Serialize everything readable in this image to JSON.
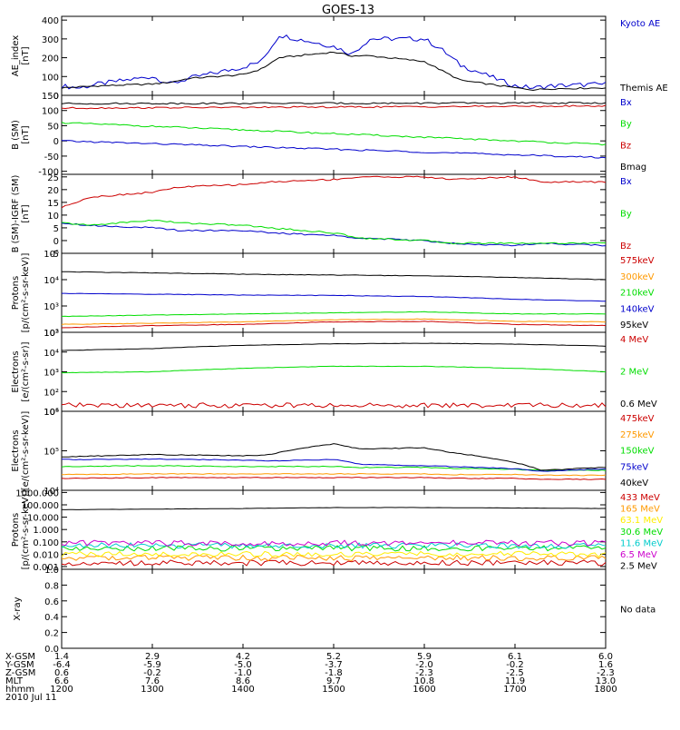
{
  "title": "GOES-13",
  "colors": {
    "black": "#000000",
    "blue": "#0000cc",
    "green": "#00dd00",
    "red": "#cc0000",
    "orange": "#ff9900",
    "yellow": "#ffee00",
    "cyan": "#00cccc",
    "purple": "#cc00cc",
    "brightblue": "#0066ff"
  },
  "footer": {
    "rows": [
      {
        "label": "X-GSM",
        "values": [
          "1.4",
          "2.9",
          "4.2",
          "5.2",
          "5.9",
          "6.1",
          "6.0"
        ]
      },
      {
        "label": "Y-GSM",
        "values": [
          "-6.4",
          "-5.9",
          "-5.0",
          "-3.7",
          "-2.0",
          "-0.2",
          "1.6"
        ]
      },
      {
        "label": "Z-GSM",
        "values": [
          "0.6",
          "-0.2",
          "-1.0",
          "-1.8",
          "-2.3",
          "-2.5",
          "-2.3"
        ]
      },
      {
        "label": "MLT",
        "values": [
          "6.6",
          "7.6",
          "8.6",
          "9.7",
          "10.8",
          "11.9",
          "13.0"
        ]
      },
      {
        "label": "hhmm",
        "values": [
          "1200",
          "1300",
          "1400",
          "1500",
          "1600",
          "1700",
          "1800"
        ]
      }
    ],
    "date": "2010 Jul 11"
  },
  "chart_data": [
    {
      "type": "line",
      "ylabel": "AE_index\n[nT]",
      "ylim": [
        0,
        420
      ],
      "ticks": [
        "0",
        "100",
        "200",
        "300",
        "400"
      ],
      "x": [
        1200,
        1220,
        1240,
        1300,
        1320,
        1340,
        1400,
        1420,
        1440,
        1500,
        1520,
        1540,
        1600,
        1620,
        1640,
        1700,
        1720,
        1740,
        1800
      ],
      "series": [
        {
          "name": "Kyoto AE",
          "color": "blue",
          "values": [
            50,
            40,
            60,
            100,
            60,
            90,
            150,
            180,
            320,
            260,
            220,
            300,
            300,
            240,
            160,
            50,
            40,
            50,
            60
          ]
        },
        {
          "name": "Themis AE",
          "color": "black",
          "values": [
            40,
            45,
            50,
            60,
            70,
            90,
            110,
            140,
            200,
            230,
            210,
            210,
            180,
            130,
            80,
            40,
            30,
            35,
            40
          ]
        }
      ]
    },
    {
      "type": "line",
      "ylabel": "B (SM)\n[nT]",
      "ylim": [
        -110,
        150
      ],
      "ticks": [
        "-100",
        "-50",
        "0",
        "50",
        "100",
        "150"
      ],
      "x": [
        1200,
        1800
      ],
      "series": [
        {
          "name": "Bx",
          "color": "blue",
          "values": [
            0,
            -55
          ]
        },
        {
          "name": "By",
          "color": "green",
          "values": [
            60,
            -12
          ]
        },
        {
          "name": "Bz",
          "color": "red",
          "values": [
            108,
            115
          ]
        },
        {
          "name": "Bmag",
          "color": "black",
          "values": [
            123,
            125
          ]
        }
      ]
    },
    {
      "type": "line",
      "ylabel": "B (SM)-IGRF (SM)\n[nT]",
      "ylim": [
        -5,
        26
      ],
      "ticks": [
        "-5",
        "0",
        "5",
        "10",
        "15",
        "20",
        "25"
      ],
      "x": [
        1200,
        1230,
        1300,
        1330,
        1400,
        1430,
        1500,
        1530,
        1600,
        1630,
        1700,
        1730,
        1800
      ],
      "series": [
        {
          "name": "Bx",
          "color": "blue",
          "values": [
            7,
            6,
            5,
            4,
            4,
            3,
            2,
            1,
            0,
            -1,
            -2,
            -1,
            -2
          ]
        },
        {
          "name": "By",
          "color": "green",
          "values": [
            7,
            6,
            8,
            7,
            6,
            5,
            3,
            1,
            0,
            -1,
            -1,
            -1,
            -1
          ]
        },
        {
          "name": "Bz",
          "color": "red",
          "values": [
            13,
            17,
            19,
            21,
            22,
            23,
            24,
            25,
            25,
            24,
            25,
            23,
            23
          ]
        }
      ]
    },
    {
      "type": "line",
      "ylabel": "Protons\n[p/(cm²-s-sr-keV)]",
      "log": true,
      "ylim": [
        100,
        100000
      ],
      "ticks": [
        "10²",
        "10³",
        "10⁴",
        "10⁵"
      ],
      "x": [
        1200,
        1300,
        1400,
        1500,
        1600,
        1700,
        1800
      ],
      "series": [
        {
          "name": "575keV",
          "color": "red",
          "values": [
            150,
            180,
            200,
            250,
            260,
            200,
            180
          ]
        },
        {
          "name": "300keV",
          "color": "orange",
          "values": [
            200,
            220,
            250,
            300,
            320,
            260,
            250
          ]
        },
        {
          "name": "210keV",
          "color": "green",
          "values": [
            400,
            450,
            500,
            550,
            600,
            500,
            500
          ]
        },
        {
          "name": "140keV",
          "color": "blue",
          "values": [
            3000,
            2800,
            2600,
            2500,
            2300,
            1800,
            1500
          ]
        },
        {
          "name": "95keV",
          "color": "black",
          "values": [
            20000,
            18000,
            16000,
            15000,
            14000,
            12000,
            10000
          ]
        }
      ]
    },
    {
      "type": "line",
      "ylabel": "Electrons\n[e/(cm²-s-sr)]",
      "log": true,
      "ylim": [
        10,
        100000
      ],
      "ticks": [
        "10¹",
        "10²",
        "10³",
        "10⁴",
        "10⁵"
      ],
      "x": [
        1200,
        1300,
        1400,
        1500,
        1600,
        1700,
        1800
      ],
      "series": [
        {
          "name": "4 MeV",
          "color": "red",
          "values": [
            20,
            20,
            20,
            20,
            20,
            20,
            20
          ]
        },
        {
          "name": "2 MeV",
          "color": "green",
          "values": [
            900,
            1000,
            1500,
            1900,
            1900,
            1500,
            1000
          ]
        },
        {
          "name": "0.6 MeV",
          "color": "black",
          "values": [
            12000,
            15000,
            22000,
            26000,
            28000,
            25000,
            20000
          ]
        }
      ]
    },
    {
      "type": "line",
      "ylabel": "Electrons\n[e/(cm²-s-sr-keV)]",
      "log": true,
      "ylim": [
        10000,
        1000000
      ],
      "ticks": [
        "10⁴",
        "10⁵",
        "10⁶"
      ],
      "x": [
        1200,
        1300,
        1400,
        1430,
        1500,
        1530,
        1600,
        1630,
        1700,
        1730,
        1800
      ],
      "series": [
        {
          "name": "475keV",
          "color": "red",
          "values": [
            20000,
            21000,
            21000,
            21000,
            21000,
            21000,
            21000,
            20000,
            20000,
            19000,
            19000
          ]
        },
        {
          "name": "275keV",
          "color": "orange",
          "values": [
            25000,
            26000,
            26000,
            26000,
            26000,
            26000,
            26000,
            25000,
            25000,
            24000,
            24000
          ]
        },
        {
          "name": "150keV",
          "color": "green",
          "values": [
            40000,
            42000,
            40000,
            40000,
            40000,
            38000,
            38000,
            36000,
            34000,
            32000,
            32000
          ]
        },
        {
          "name": "75keV",
          "color": "blue",
          "values": [
            60000,
            62000,
            58000,
            55000,
            60000,
            45000,
            42000,
            40000,
            35000,
            30000,
            35000
          ]
        },
        {
          "name": "40keV",
          "color": "black",
          "values": [
            70000,
            80000,
            75000,
            80000,
            150000,
            110000,
            120000,
            90000,
            50000,
            32000,
            38000
          ]
        }
      ]
    },
    {
      "type": "line",
      "ylabel": "Protons\n[p/(cm²-s-sr-keV)]",
      "log": true,
      "ylim": [
        0.0006,
        1500
      ],
      "ticks": [
        "0.001",
        "0.010",
        "0.100",
        "1.000",
        "10.000",
        "100.000",
        "1000.000"
      ],
      "x": [
        1200,
        1300,
        1400,
        1500,
        1600,
        1700,
        1800
      ],
      "series": [
        {
          "name": "433 MeV",
          "color": "red",
          "values": [
            0.002,
            0.002,
            0.002,
            0.002,
            0.002,
            0.002,
            0.002
          ]
        },
        {
          "name": "165 MeV",
          "color": "orange",
          "values": [
            0.005,
            0.005,
            0.005,
            0.005,
            0.005,
            0.005,
            0.005
          ]
        },
        {
          "name": "63.1 MeV",
          "color": "yellow",
          "values": [
            0.01,
            0.01,
            0.01,
            0.01,
            0.01,
            0.01,
            0.01
          ]
        },
        {
          "name": "30.6 MeV",
          "color": "green",
          "values": [
            0.03,
            0.03,
            0.03,
            0.03,
            0.03,
            0.03,
            0.03
          ]
        },
        {
          "name": "11.6 MeV",
          "color": "cyan",
          "values": [
            0.05,
            0.05,
            0.05,
            0.05,
            0.05,
            0.05,
            0.05
          ]
        },
        {
          "name": "6.5 MeV",
          "color": "purple",
          "values": [
            0.08,
            0.08,
            0.08,
            0.08,
            0.08,
            0.08,
            0.08
          ]
        },
        {
          "name": "2.5 MeV",
          "color": "black",
          "values": [
            40,
            45,
            50,
            60,
            60,
            55,
            50
          ]
        }
      ]
    },
    {
      "type": "line",
      "ylabel": "X-ray",
      "ylim": [
        0,
        1
      ],
      "ticks": [
        "0.0",
        "0.2",
        "0.4",
        "0.6",
        "0.8",
        "1.0"
      ],
      "x": [],
      "series": [],
      "note": "No data"
    }
  ]
}
